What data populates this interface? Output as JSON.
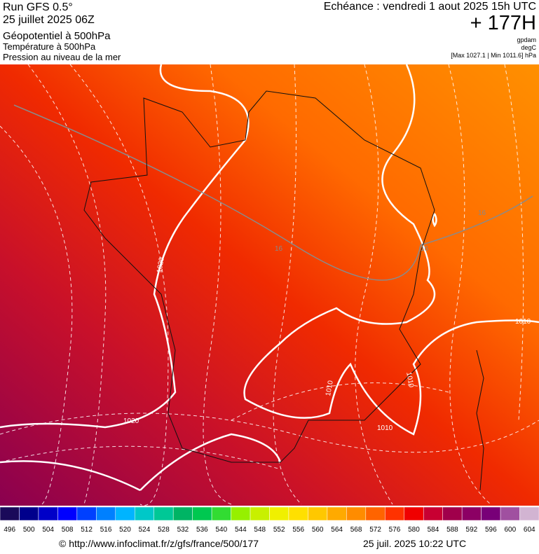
{
  "header": {
    "run": "Run GFS 0.5°",
    "date": "25 juillet 2025 06Z",
    "field1": "Géopotentiel à 500hPa",
    "field2": "Température à 500hPa",
    "field3": "Pression au niveau de la mer",
    "valid": "Echéance : vendredi 1 aout 2025 15h UTC",
    "lead": "+ 177H",
    "unit1": "gpdam",
    "unit2": "degC",
    "range": "[Max 1027.1 | Min 1011.6] hPa"
  },
  "map": {
    "contour_labels": [
      "1020",
      "1010",
      "1010",
      "1010",
      "1020",
      "1010",
      "16",
      "16",
      "16"
    ]
  },
  "colorbar": {
    "labels": [
      496,
      500,
      504,
      508,
      512,
      516,
      520,
      524,
      528,
      532,
      536,
      540,
      544,
      548,
      552,
      556,
      560,
      564,
      568,
      572,
      576,
      580,
      584,
      588,
      592,
      596,
      600,
      604
    ],
    "colors": [
      "#1a0a5a",
      "#00008c",
      "#0000c8",
      "#0000ff",
      "#0040ff",
      "#0080ff",
      "#00b4ff",
      "#00c8c8",
      "#00c896",
      "#00b464",
      "#00c850",
      "#32dc32",
      "#96f000",
      "#c8f000",
      "#f0f000",
      "#ffe000",
      "#ffc800",
      "#ffaa00",
      "#ff8c00",
      "#ff6400",
      "#ff3200",
      "#f00000",
      "#c80032",
      "#a0004b",
      "#8c0064",
      "#780078",
      "#a050a0",
      "#d2b4d2"
    ]
  },
  "footer": {
    "url": "© http://www.infoclimat.fr/z/gfs/france/500/177",
    "timestamp": "25 juil. 2025 10:22 UTC"
  }
}
